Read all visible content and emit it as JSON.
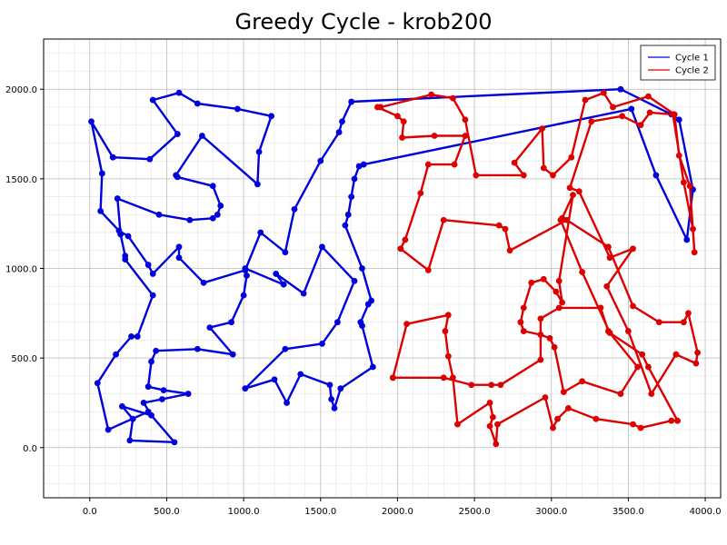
{
  "chart_data": {
    "type": "line",
    "title": "Greedy Cycle - krob200",
    "xlabel": "",
    "ylabel": "",
    "xlim": [
      -300,
      4100
    ],
    "ylim": [
      -280,
      2280
    ],
    "xticks": [
      "0.0",
      "500.0",
      "1000.0",
      "1500.0",
      "2000.0",
      "2500.0",
      "3000.0",
      "3500.0",
      "4000.0"
    ],
    "yticks": [
      "0.0",
      "500.0",
      "1000.0",
      "1500.0",
      "2000.0"
    ],
    "grid": true,
    "legend_position": "top-right",
    "series": [
      {
        "name": "Cycle 1",
        "color": "#0000dd",
        "points": [
          [
            3450,
            2000
          ],
          [
            3780,
            1860
          ],
          [
            3830,
            1830
          ],
          [
            3920,
            1440
          ],
          [
            3880,
            1160
          ],
          [
            3680,
            1520
          ],
          [
            3520,
            1890
          ],
          [
            1780,
            1580
          ],
          [
            1750,
            1570
          ],
          [
            1720,
            1500
          ],
          [
            1700,
            1400
          ],
          [
            1680,
            1300
          ],
          [
            1660,
            1240
          ],
          [
            1770,
            1000
          ],
          [
            1830,
            820
          ],
          [
            1810,
            800
          ],
          [
            1760,
            700
          ],
          [
            1770,
            680
          ],
          [
            1840,
            450
          ],
          [
            1630,
            330
          ],
          [
            1590,
            220
          ],
          [
            1570,
            270
          ],
          [
            1560,
            350
          ],
          [
            1370,
            410
          ],
          [
            1280,
            250
          ],
          [
            1200,
            380
          ],
          [
            1010,
            330
          ],
          [
            1270,
            550
          ],
          [
            1510,
            580
          ],
          [
            1610,
            700
          ],
          [
            1720,
            930
          ],
          [
            1510,
            1120
          ],
          [
            1390,
            860
          ],
          [
            1210,
            970
          ],
          [
            1260,
            910
          ],
          [
            1010,
            1000
          ],
          [
            1020,
            960
          ],
          [
            1000,
            850
          ],
          [
            920,
            700
          ],
          [
            780,
            670
          ],
          [
            930,
            520
          ],
          [
            700,
            550
          ],
          [
            430,
            540
          ],
          [
            400,
            480
          ],
          [
            380,
            340
          ],
          [
            480,
            320
          ],
          [
            640,
            300
          ],
          [
            470,
            270
          ],
          [
            350,
            250
          ],
          [
            400,
            180
          ],
          [
            210,
            230
          ],
          [
            280,
            160
          ],
          [
            260,
            40
          ],
          [
            550,
            30
          ],
          [
            380,
            200
          ],
          [
            120,
            100
          ],
          [
            50,
            360
          ],
          [
            170,
            520
          ],
          [
            270,
            620
          ],
          [
            310,
            620
          ],
          [
            410,
            850
          ],
          [
            230,
            1050
          ],
          [
            230,
            1070
          ],
          [
            200,
            1190
          ],
          [
            180,
            1390
          ],
          [
            450,
            1300
          ],
          [
            650,
            1270
          ],
          [
            800,
            1280
          ],
          [
            830,
            1300
          ],
          [
            850,
            1350
          ],
          [
            800,
            1460
          ],
          [
            570,
            1510
          ],
          [
            560,
            1520
          ],
          [
            730,
            1740
          ],
          [
            1090,
            1470
          ],
          [
            1100,
            1650
          ],
          [
            1180,
            1850
          ],
          [
            960,
            1890
          ],
          [
            700,
            1920
          ],
          [
            580,
            1980
          ],
          [
            410,
            1940
          ],
          [
            570,
            1750
          ],
          [
            390,
            1610
          ],
          [
            150,
            1620
          ],
          [
            10,
            1820
          ],
          [
            80,
            1530
          ],
          [
            70,
            1320
          ],
          [
            190,
            1210
          ],
          [
            250,
            1180
          ],
          [
            380,
            1020
          ],
          [
            410,
            970
          ],
          [
            580,
            1120
          ],
          [
            580,
            1060
          ],
          [
            740,
            920
          ],
          [
            1010,
            990
          ],
          [
            1110,
            1200
          ],
          [
            1270,
            1090
          ],
          [
            1330,
            1330
          ],
          [
            1500,
            1600
          ],
          [
            1620,
            1760
          ],
          [
            1640,
            1820
          ],
          [
            1700,
            1930
          ],
          [
            3450,
            2000
          ]
        ]
      },
      {
        "name": "Cycle 2",
        "color": "#dd0000",
        "points": [
          [
            1890,
            1900
          ],
          [
            2220,
            1970
          ],
          [
            2360,
            1950
          ],
          [
            2440,
            1830
          ],
          [
            2510,
            1520
          ],
          [
            2820,
            1520
          ],
          [
            2760,
            1590
          ],
          [
            2940,
            1780
          ],
          [
            2950,
            1560
          ],
          [
            3010,
            1520
          ],
          [
            3130,
            1620
          ],
          [
            3220,
            1940
          ],
          [
            3340,
            1980
          ],
          [
            3400,
            1900
          ],
          [
            3630,
            1960
          ],
          [
            3800,
            1860
          ],
          [
            3830,
            1630
          ],
          [
            3900,
            1460
          ],
          [
            3930,
            1090
          ],
          [
            3920,
            1220
          ],
          [
            3860,
            1480
          ],
          [
            3790,
            1860
          ],
          [
            3640,
            1870
          ],
          [
            3580,
            1800
          ],
          [
            3460,
            1850
          ],
          [
            3260,
            1820
          ],
          [
            3120,
            1450
          ],
          [
            3180,
            1430
          ],
          [
            3380,
            1060
          ],
          [
            3530,
            1110
          ],
          [
            3360,
            900
          ],
          [
            3500,
            650
          ],
          [
            3650,
            300
          ],
          [
            3810,
            520
          ],
          [
            3940,
            470
          ],
          [
            3950,
            530
          ],
          [
            3890,
            750
          ],
          [
            3860,
            700
          ],
          [
            3700,
            700
          ],
          [
            3530,
            790
          ],
          [
            3370,
            1120
          ],
          [
            3100,
            1270
          ],
          [
            2730,
            1100
          ],
          [
            2700,
            1220
          ],
          [
            2660,
            1240
          ],
          [
            2300,
            1270
          ],
          [
            2200,
            990
          ],
          [
            2020,
            1110
          ],
          [
            2050,
            1160
          ],
          [
            2150,
            1420
          ],
          [
            2200,
            1580
          ],
          [
            2370,
            1580
          ],
          [
            2440,
            1740
          ],
          [
            2240,
            1740
          ],
          [
            2030,
            1730
          ],
          [
            2040,
            1820
          ],
          [
            2000,
            1850
          ],
          [
            1870,
            1900
          ]
        ]
      },
      {
        "name": "",
        "color": "#dd0000",
        "points": [
          [
            1970,
            390
          ],
          [
            2060,
            690
          ],
          [
            2330,
            740
          ],
          [
            2310,
            650
          ],
          [
            2330,
            510
          ],
          [
            2360,
            390
          ],
          [
            2390,
            130
          ],
          [
            2600,
            250
          ],
          [
            2620,
            170
          ],
          [
            2600,
            120
          ],
          [
            2640,
            20
          ],
          [
            2650,
            130
          ],
          [
            2960,
            280
          ],
          [
            3010,
            110
          ],
          [
            3040,
            160
          ],
          [
            3110,
            220
          ],
          [
            3290,
            160
          ],
          [
            3530,
            130
          ],
          [
            3580,
            110
          ],
          [
            3780,
            150
          ],
          [
            3820,
            150
          ],
          [
            3630,
            450
          ],
          [
            3590,
            520
          ],
          [
            3380,
            640
          ],
          [
            3200,
            980
          ],
          [
            3060,
            1270
          ],
          [
            3070,
            1280
          ],
          [
            3140,
            1410
          ],
          [
            3050,
            930
          ],
          [
            3070,
            810
          ],
          [
            3030,
            870
          ],
          [
            2950,
            940
          ],
          [
            2870,
            920
          ],
          [
            2820,
            780
          ],
          [
            2800,
            700
          ],
          [
            2820,
            650
          ],
          [
            2930,
            630
          ],
          [
            2990,
            610
          ],
          [
            3020,
            560
          ],
          [
            3080,
            310
          ],
          [
            3200,
            370
          ],
          [
            3450,
            300
          ],
          [
            3560,
            450
          ],
          [
            3370,
            650
          ],
          [
            3320,
            780
          ],
          [
            3050,
            780
          ],
          [
            2930,
            720
          ],
          [
            2930,
            490
          ],
          [
            2670,
            350
          ],
          [
            2610,
            350
          ],
          [
            2480,
            350
          ],
          [
            2300,
            390
          ],
          [
            1970,
            390
          ]
        ]
      }
    ],
    "legend": [
      "Cycle 1",
      "Cycle 2"
    ],
    "legend_colors": [
      "#0000dd",
      "#dd0000"
    ]
  }
}
